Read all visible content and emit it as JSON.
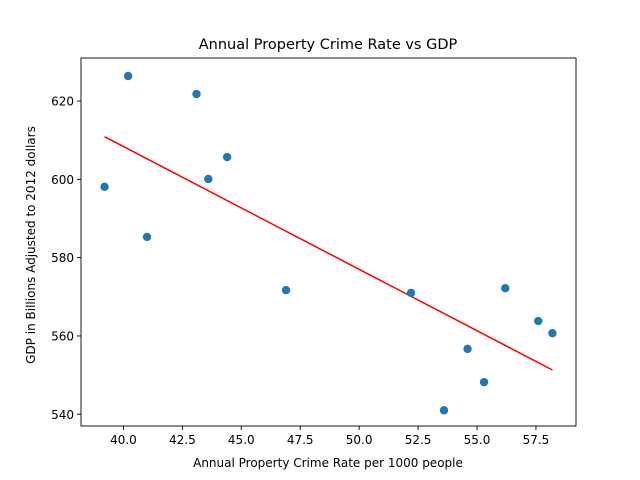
{
  "chart_data": {
    "type": "scatter",
    "title": "Annual Property Crime Rate vs GDP",
    "xlabel": "Annual Property Crime Rate per 1000 people",
    "ylabel": "GDP in Billions Adjusted to 2012 dollars",
    "xlim": [
      38.2,
      59.2
    ],
    "ylim": [
      537,
      631
    ],
    "xticks": [
      40.0,
      42.5,
      45.0,
      47.5,
      50.0,
      52.5,
      55.0,
      57.5
    ],
    "xtick_labels": [
      "40.0",
      "42.5",
      "45.0",
      "47.5",
      "50.0",
      "52.5",
      "55.0",
      "57.5"
    ],
    "yticks": [
      540,
      560,
      580,
      600,
      620
    ],
    "ytick_labels": [
      "540",
      "560",
      "580",
      "600",
      "620"
    ],
    "grid": false,
    "legend": "none",
    "series": [
      {
        "kind": "points",
        "color": "#1f77b4",
        "points": [
          {
            "x": 39.2,
            "y": 598.1
          },
          {
            "x": 40.2,
            "y": 626.4
          },
          {
            "x": 41.0,
            "y": 585.3
          },
          {
            "x": 43.1,
            "y": 621.8
          },
          {
            "x": 43.6,
            "y": 600.1
          },
          {
            "x": 44.4,
            "y": 605.7
          },
          {
            "x": 46.9,
            "y": 571.7
          },
          {
            "x": 52.2,
            "y": 571.0
          },
          {
            "x": 53.6,
            "y": 541.0
          },
          {
            "x": 54.6,
            "y": 556.7
          },
          {
            "x": 55.3,
            "y": 548.2
          },
          {
            "x": 56.2,
            "y": 572.2
          },
          {
            "x": 57.6,
            "y": 563.8
          },
          {
            "x": 58.2,
            "y": 560.7
          }
        ]
      },
      {
        "kind": "fit-line",
        "color": "#ff0000",
        "points": [
          {
            "x": 39.2,
            "y": 610.9
          },
          {
            "x": 58.2,
            "y": 551.3
          }
        ]
      }
    ]
  }
}
